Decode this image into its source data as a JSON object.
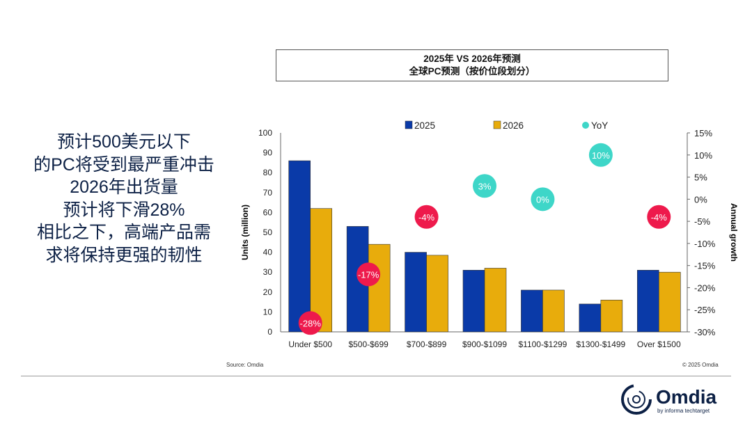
{
  "left_text": [
    "预计500美元以下",
    "的PC将受到最严重冲击",
    "2026年出货量",
    "预计将下滑28%",
    "相比之下，高端产品需",
    "求将保持更强的韧性"
  ],
  "source": "Source: Omdia",
  "copyright": "© 2025 Omdia",
  "logo": {
    "name": "Omdia",
    "tagline": "by informa techtarget"
  },
  "chart_data": {
    "type": "bar",
    "title": [
      "2025年 VS 2026年预测",
      "全球PC预测（按价位段划分）"
    ],
    "categories": [
      "Under $500",
      "$500-$699",
      "$700-$899",
      "$900-$1099",
      "$1100-$1299",
      "$1300-$1499",
      "Over $1500"
    ],
    "series": [
      {
        "name": "2025",
        "type": "bar",
        "axis": "left",
        "color": "#0a3aa8",
        "values": [
          86,
          53,
          40,
          31,
          21,
          14,
          31
        ]
      },
      {
        "name": "2026",
        "type": "bar",
        "axis": "left",
        "color": "#e8ac0c",
        "values": [
          62,
          44,
          38.5,
          32,
          21,
          16,
          30
        ]
      },
      {
        "name": "YoY",
        "type": "scatter",
        "axis": "right",
        "values": [
          -28,
          -17,
          -4,
          3,
          0,
          10,
          -4
        ],
        "labels": [
          "-28%",
          "-17%",
          "-4%",
          "3%",
          "0%",
          "10%",
          "-4%"
        ],
        "pos_color": "#3ed6c8",
        "neg_color": "#ee1a4c"
      }
    ],
    "ylabel": "Units (million)",
    "ylim": [
      0,
      100
    ],
    "yticks": [
      "0",
      "10",
      "20",
      "30",
      "40",
      "50",
      "60",
      "70",
      "80",
      "90",
      "100"
    ],
    "y2label": "Annual growth",
    "y2lim": [
      -30,
      15
    ],
    "y2ticks": [
      "-30%",
      "-25%",
      "-20%",
      "-15%",
      "-10%",
      "-5%",
      "0%",
      "5%",
      "10%",
      "15%"
    ],
    "legend": "top",
    "grid": false
  }
}
